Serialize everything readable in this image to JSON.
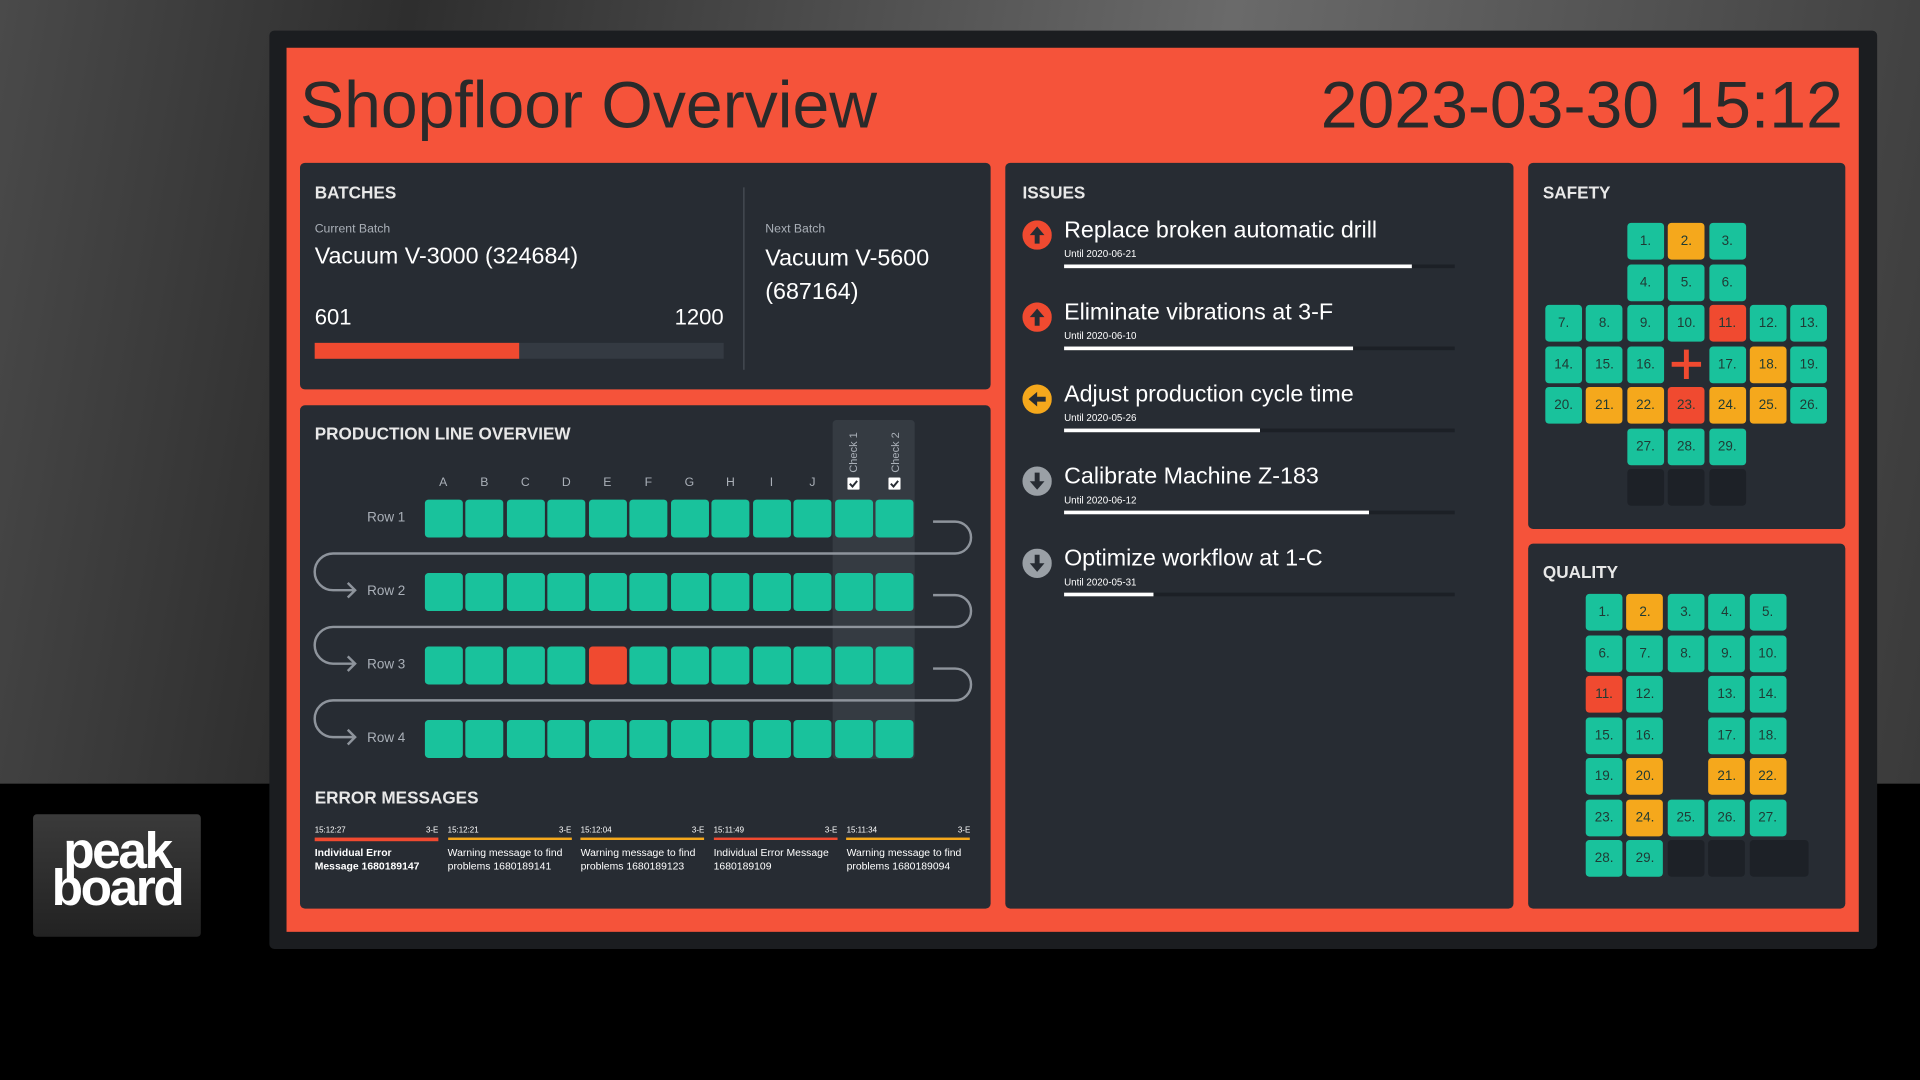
{
  "header": {
    "title": "Shopfloor Overview",
    "datetime": "2023-03-30 15:12"
  },
  "logo": [
    "peak",
    "board"
  ],
  "batches": {
    "title": "BATCHES",
    "current_label": "Current Batch",
    "current": "Vacuum V-3000 (324684)",
    "next_label": "Next Batch",
    "next": "Vacuum V-5600 (687164)",
    "progress": 601,
    "target": 1200,
    "color": "#f04a30"
  },
  "production": {
    "title": "PRODUCTION LINE OVERVIEW",
    "columns": [
      "A",
      "B",
      "C",
      "D",
      "E",
      "F",
      "G",
      "H",
      "I",
      "J"
    ],
    "checks": [
      "Check 1",
      "Check 2"
    ],
    "rows": [
      {
        "label": "Row 1",
        "cells": [
          "#19c29c",
          "#19c29c",
          "#19c29c",
          "#19c29c",
          "#19c29c",
          "#19c29c",
          "#19c29c",
          "#19c29c",
          "#19c29c",
          "#19c29c",
          "#19c29c",
          "#19c29c"
        ]
      },
      {
        "label": "Row 2",
        "cells": [
          "#19c29c",
          "#19c29c",
          "#19c29c",
          "#19c29c",
          "#19c29c",
          "#19c29c",
          "#19c29c",
          "#19c29c",
          "#19c29c",
          "#19c29c",
          "#19c29c",
          "#19c29c"
        ]
      },
      {
        "label": "Row 3",
        "cells": [
          "#19c29c",
          "#19c29c",
          "#19c29c",
          "#19c29c",
          "#f04a30",
          "#19c29c",
          "#19c29c",
          "#19c29c",
          "#19c29c",
          "#19c29c",
          "#19c29c",
          "#19c29c"
        ]
      },
      {
        "label": "Row 4",
        "cells": [
          "#19c29c",
          "#19c29c",
          "#19c29c",
          "#19c29c",
          "#19c29c",
          "#19c29c",
          "#19c29c",
          "#19c29c",
          "#19c29c",
          "#19c29c",
          "#19c29c",
          "#19c29c"
        ]
      }
    ]
  },
  "errors": {
    "title": "ERROR MESSAGES",
    "items": [
      {
        "time": "15:12:27",
        "station": "3-E",
        "text": "Individual Error Message 1680189147",
        "color": "#f04a30"
      },
      {
        "time": "15:12:21",
        "station": "3-E",
        "text": "Warning message to find problems 1680189141",
        "color": "#f5a81c"
      },
      {
        "time": "15:12:04",
        "station": "3-E",
        "text": "Warning message to find problems 1680189123",
        "color": "#f5a81c"
      },
      {
        "time": "15:11:49",
        "station": "3-E",
        "text": "Individual Error Message 1680189109",
        "color": "#f04a30"
      },
      {
        "time": "15:11:34",
        "station": "3-E",
        "text": "Warning message to find problems 1680189094",
        "color": "#f5a81c"
      }
    ]
  },
  "issues": {
    "title": "ISSUES",
    "items": [
      {
        "title": "Replace broken automatic drill",
        "due": "Until 2020-06-21",
        "progress": 89,
        "color": "#f04a30",
        "icon": "up"
      },
      {
        "title": "Eliminate vibrations at 3-F",
        "due": "Until 2020-06-10",
        "progress": 74,
        "color": "#f04a30",
        "icon": "up"
      },
      {
        "title": "Adjust production cycle time",
        "due": "Until 2020-05-26",
        "progress": 50,
        "color": "#f5a81c",
        "icon": "left"
      },
      {
        "title": "Calibrate Machine Z-183",
        "due": "Until 2020-06-12",
        "progress": 78,
        "color": "#9aa0a6",
        "icon": "down"
      },
      {
        "title": "Optimize workflow at 1-C",
        "due": "Until 2020-05-31",
        "progress": 23,
        "color": "#9aa0a6",
        "icon": "down"
      }
    ]
  },
  "safety": {
    "title": "SAFETY",
    "cells": [
      {
        "label": "1.",
        "color": "#19c29c"
      },
      {
        "label": "2.",
        "color": "#f5a81c"
      },
      {
        "label": "3.",
        "color": "#19c29c"
      },
      {
        "label": "4.",
        "color": "#19c29c"
      },
      {
        "label": "5.",
        "color": "#19c29c"
      },
      {
        "label": "6.",
        "color": "#19c29c"
      },
      {
        "label": "7.",
        "color": "#19c29c"
      },
      {
        "label": "8.",
        "color": "#19c29c"
      },
      {
        "label": "9.",
        "color": "#19c29c"
      },
      {
        "label": "10.",
        "color": "#19c29c"
      },
      {
        "label": "11.",
        "color": "#f04a30"
      },
      {
        "label": "12.",
        "color": "#19c29c"
      },
      {
        "label": "13.",
        "color": "#19c29c"
      },
      {
        "label": "14.",
        "color": "#19c29c"
      },
      {
        "label": "15.",
        "color": "#19c29c"
      },
      {
        "label": "16.",
        "color": "#19c29c"
      },
      {
        "label": "17.",
        "color": "#19c29c"
      },
      {
        "label": "18.",
        "color": "#f5a81c"
      },
      {
        "label": "19.",
        "color": "#19c29c"
      },
      {
        "label": "20.",
        "color": "#19c29c"
      },
      {
        "label": "21.",
        "color": "#f5a81c"
      },
      {
        "label": "22.",
        "color": "#f5a81c"
      },
      {
        "label": "23.",
        "color": "#f04a30"
      },
      {
        "label": "24.",
        "color": "#f5a81c"
      },
      {
        "label": "25.",
        "color": "#f5a81c"
      },
      {
        "label": "26.",
        "color": "#19c29c"
      },
      {
        "label": "27.",
        "color": "#19c29c"
      },
      {
        "label": "28.",
        "color": "#19c29c"
      },
      {
        "label": "29.",
        "color": "#19c29c"
      }
    ]
  },
  "quality": {
    "title": "QUALITY",
    "cells": [
      {
        "label": "1.",
        "color": "#19c29c"
      },
      {
        "label": "2.",
        "color": "#f5a81c"
      },
      {
        "label": "3.",
        "color": "#19c29c"
      },
      {
        "label": "4.",
        "color": "#19c29c"
      },
      {
        "label": "5.",
        "color": "#19c29c"
      },
      {
        "label": "6.",
        "color": "#19c29c"
      },
      {
        "label": "7.",
        "color": "#19c29c"
      },
      {
        "label": "8.",
        "color": "#19c29c"
      },
      {
        "label": "9.",
        "color": "#19c29c"
      },
      {
        "label": "10.",
        "color": "#19c29c"
      },
      {
        "label": "11.",
        "color": "#f04a30"
      },
      {
        "label": "12.",
        "color": "#19c29c"
      },
      {
        "label": "13.",
        "color": "#19c29c"
      },
      {
        "label": "14.",
        "color": "#19c29c"
      },
      {
        "label": "15.",
        "color": "#19c29c"
      },
      {
        "label": "16.",
        "color": "#19c29c"
      },
      {
        "label": "17.",
        "color": "#19c29c"
      },
      {
        "label": "18.",
        "color": "#19c29c"
      },
      {
        "label": "19.",
        "color": "#19c29c"
      },
      {
        "label": "20.",
        "color": "#f5a81c"
      },
      {
        "label": "21.",
        "color": "#f5a81c"
      },
      {
        "label": "22.",
        "color": "#f5a81c"
      },
      {
        "label": "23.",
        "color": "#19c29c"
      },
      {
        "label": "24.",
        "color": "#f5a81c"
      },
      {
        "label": "25.",
        "color": "#19c29c"
      },
      {
        "label": "26.",
        "color": "#19c29c"
      },
      {
        "label": "27.",
        "color": "#19c29c"
      },
      {
        "label": "28.",
        "color": "#19c29c"
      },
      {
        "label": "29.",
        "color": "#19c29c"
      }
    ]
  }
}
